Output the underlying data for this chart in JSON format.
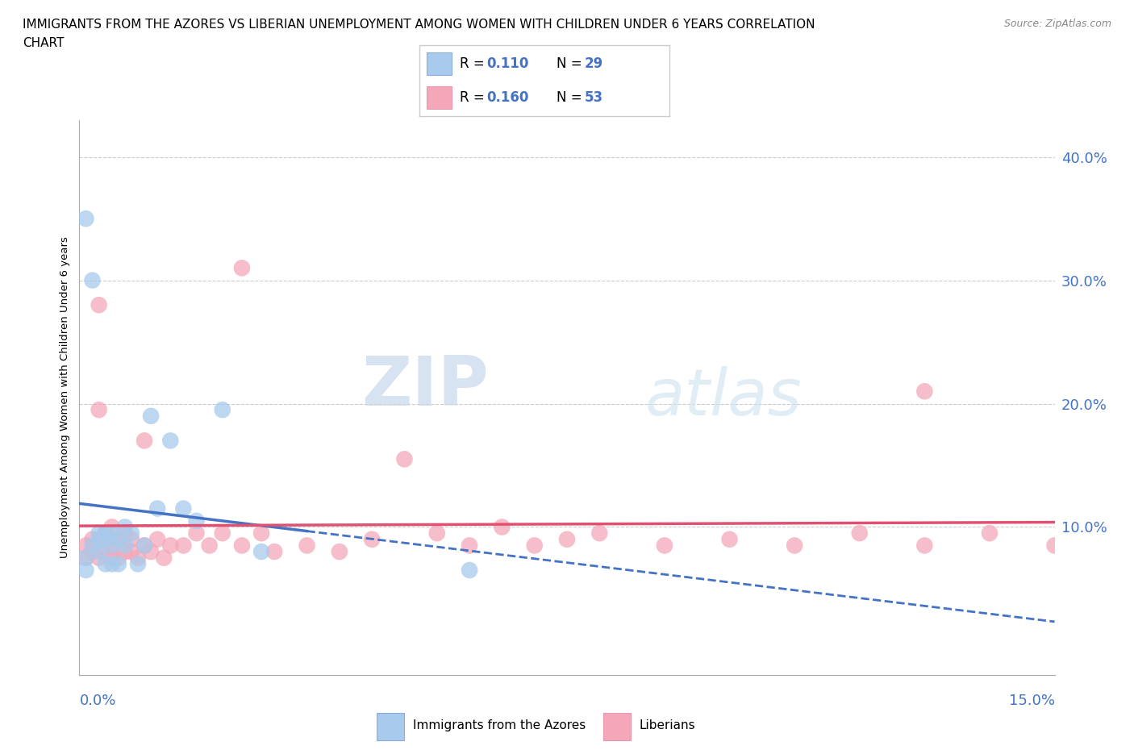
{
  "title_line1": "IMMIGRANTS FROM THE AZORES VS LIBERIAN UNEMPLOYMENT AMONG WOMEN WITH CHILDREN UNDER 6 YEARS CORRELATION",
  "title_line2": "CHART",
  "source": "Source: ZipAtlas.com",
  "ylabel": "Unemployment Among Women with Children Under 6 years",
  "xmin": 0.0,
  "xmax": 0.15,
  "ymin": -0.02,
  "ymax": 0.43,
  "azores_color": "#A8CAEC",
  "liberian_color": "#F4A7B9",
  "trend_azores_color": "#4472C4",
  "trend_liberian_color": "#E05070",
  "watermark_zip": "ZIP",
  "watermark_atlas": "atlas",
  "grid_color": "#CCCCCC",
  "background_color": "#FFFFFF",
  "tick_color": "#4472C4",
  "legend_border_color": "#CCCCCC",
  "azores_x": [
    0.001,
    0.001,
    0.002,
    0.002,
    0.003,
    0.003,
    0.003,
    0.004,
    0.004,
    0.004,
    0.005,
    0.005,
    0.005,
    0.006,
    0.006,
    0.007,
    0.007,
    0.008,
    0.009,
    0.01,
    0.011,
    0.012,
    0.014,
    0.016,
    0.018,
    0.022,
    0.028,
    0.001,
    0.06
  ],
  "azores_y": [
    0.35,
    0.075,
    0.3,
    0.085,
    0.08,
    0.09,
    0.095,
    0.07,
    0.09,
    0.095,
    0.07,
    0.085,
    0.095,
    0.07,
    0.09,
    0.085,
    0.1,
    0.095,
    0.07,
    0.085,
    0.19,
    0.115,
    0.17,
    0.115,
    0.105,
    0.195,
    0.08,
    0.065,
    0.065
  ],
  "liberian_x": [
    0.001,
    0.001,
    0.002,
    0.002,
    0.003,
    0.003,
    0.003,
    0.004,
    0.004,
    0.004,
    0.005,
    0.005,
    0.005,
    0.006,
    0.006,
    0.007,
    0.007,
    0.008,
    0.008,
    0.009,
    0.01,
    0.011,
    0.012,
    0.013,
    0.014,
    0.016,
    0.018,
    0.02,
    0.022,
    0.025,
    0.028,
    0.03,
    0.035,
    0.04,
    0.045,
    0.05,
    0.055,
    0.06,
    0.065,
    0.07,
    0.075,
    0.08,
    0.09,
    0.1,
    0.11,
    0.12,
    0.13,
    0.14,
    0.15,
    0.003,
    0.01,
    0.025,
    0.13
  ],
  "liberian_y": [
    0.075,
    0.085,
    0.08,
    0.09,
    0.075,
    0.09,
    0.28,
    0.08,
    0.09,
    0.095,
    0.075,
    0.085,
    0.1,
    0.075,
    0.09,
    0.08,
    0.095,
    0.08,
    0.09,
    0.075,
    0.085,
    0.08,
    0.09,
    0.075,
    0.085,
    0.085,
    0.095,
    0.085,
    0.095,
    0.085,
    0.095,
    0.08,
    0.085,
    0.08,
    0.09,
    0.155,
    0.095,
    0.085,
    0.1,
    0.085,
    0.09,
    0.095,
    0.085,
    0.09,
    0.085,
    0.095,
    0.085,
    0.095,
    0.085,
    0.195,
    0.17,
    0.31,
    0.21
  ],
  "ytick_positions": [
    0.1,
    0.2,
    0.3,
    0.4
  ],
  "ytick_labels": [
    "10.0%",
    "20.0%",
    "30.0%",
    "40.0%"
  ],
  "xtick_left_label": "0.0%",
  "xtick_right_label": "15.0%",
  "legend_azores_label": "Immigrants from the Azores",
  "legend_liberian_label": "Liberians"
}
